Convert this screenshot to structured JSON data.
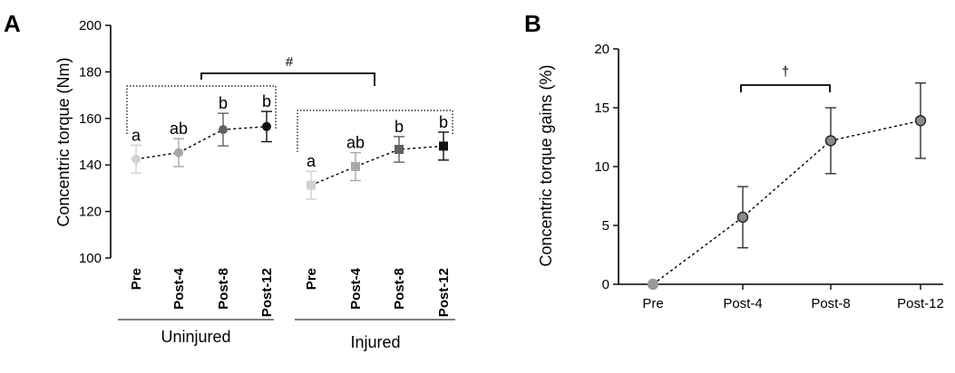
{
  "chart_data": [
    {
      "panel": "A",
      "type": "line",
      "ylabel": "Concentric torque (Nm)",
      "ylim": [
        100,
        200
      ],
      "yticks": [
        100,
        120,
        140,
        160,
        180,
        200
      ],
      "groups": [
        {
          "name": "Uninjured",
          "categories": [
            "Pre",
            "Post-4",
            "Post-8",
            "Post-12"
          ],
          "marker": "circle",
          "values": [
            142.5,
            145.3,
            155.2,
            156.5
          ],
          "errors": [
            6,
            6,
            7,
            6.5
          ],
          "colors": [
            "#d0d0d0",
            "#a8a8a8",
            "#606060",
            "#111111"
          ],
          "letters": [
            "a",
            "ab",
            "b",
            "b"
          ]
        },
        {
          "name": "Injured",
          "categories": [
            "Pre",
            "Post-4",
            "Post-8",
            "Post-12"
          ],
          "marker": "square",
          "values": [
            131.3,
            139.3,
            146.7,
            148.1
          ],
          "errors": [
            6,
            6,
            5.5,
            6
          ],
          "colors": [
            "#d0d0d0",
            "#a8a8a8",
            "#606060",
            "#111111"
          ],
          "letters": [
            "a",
            "ab",
            "b",
            "b"
          ]
        }
      ],
      "annotations": [
        "#"
      ]
    },
    {
      "panel": "B",
      "type": "line",
      "ylabel": "Concentric torque gains (%)",
      "ylim": [
        0,
        20
      ],
      "yticks": [
        0,
        5,
        10,
        15,
        20
      ],
      "categories": [
        "Pre",
        "Post-4",
        "Post-8",
        "Post-12"
      ],
      "values": [
        0,
        5.7,
        12.2,
        13.9
      ],
      "errors": [
        0,
        2.6,
        2.8,
        3.2
      ],
      "annotations": [
        "†"
      ]
    }
  ]
}
